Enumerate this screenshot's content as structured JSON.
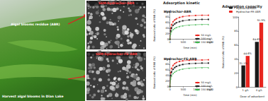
{
  "photo": {
    "label": "Algal blooms residue (ABR)",
    "caption": "Harvest algal blooms in Dian Lake"
  },
  "sem": {
    "top": "SEM-hydrochar-ABR",
    "bottom": "SEM-hydrochar-FE-ABR"
  },
  "kinetic_heading": "Adsorption kinetic",
  "chart_data": [
    {
      "type": "line",
      "title": "Hydrochar-ABR",
      "x_label": "Time (min)",
      "y_label": "Removal ratio of RhB (%)",
      "x": [
        0,
        30,
        60,
        120,
        180,
        240,
        360,
        480,
        720,
        960,
        1200,
        1440
      ],
      "series": [
        {
          "name": "50 mg/L",
          "color": "#e8251f",
          "marker": "circle",
          "line_style": "solid",
          "values": [
            0,
            40,
            52,
            63,
            69,
            73,
            78,
            81,
            84,
            85,
            86,
            86
          ]
        },
        {
          "name": "100 mg/L",
          "color": "#222222",
          "marker": "rect",
          "line_style": "solid",
          "values": [
            0,
            30,
            40,
            50,
            55,
            59,
            63,
            66,
            69,
            70,
            71,
            71
          ]
        },
        {
          "name": "150 mg/L",
          "color": "#3cb44b",
          "marker": "triangle",
          "line_style": "solid",
          "values": [
            0,
            20,
            28,
            35,
            39,
            42,
            46,
            48,
            51,
            52,
            53,
            53
          ]
        }
      ],
      "xlim": [
        0,
        1500
      ],
      "xticks": [
        0,
        500,
        1000,
        1500
      ],
      "ylim": [
        0,
        100
      ],
      "yticks": [
        0,
        20,
        40,
        60,
        80,
        100
      ],
      "grid": false,
      "legend": "lower right"
    },
    {
      "type": "line",
      "title": "Hydrochar-FE-ABR",
      "x_label": "Time (min)",
      "y_label": "Removal ratio of RhB (%)",
      "x": [
        0,
        30,
        60,
        120,
        180,
        240,
        360,
        480,
        720,
        960,
        1200,
        1440
      ],
      "series": [
        {
          "name": "50 mg/L",
          "color": "#e8251f",
          "marker": "circle",
          "line_style": "solid",
          "values": [
            0,
            50,
            65,
            76,
            82,
            86,
            90,
            92,
            94,
            95,
            95,
            96
          ]
        },
        {
          "name": "100 mg/L",
          "color": "#222222",
          "marker": "rect",
          "line_style": "solid",
          "values": [
            0,
            40,
            52,
            62,
            68,
            72,
            76,
            79,
            82,
            83,
            84,
            84
          ]
        },
        {
          "name": "150 mg/L",
          "color": "#3cb44b",
          "marker": "triangle",
          "line_style": "solid",
          "values": [
            0,
            28,
            38,
            47,
            52,
            56,
            60,
            63,
            66,
            67,
            68,
            68
          ]
        }
      ],
      "xlim": [
        0,
        1500
      ],
      "xticks": [
        0,
        500,
        1000,
        1500
      ],
      "ylim": [
        0,
        100
      ],
      "yticks": [
        0,
        20,
        40,
        60,
        80,
        100
      ],
      "grid": false,
      "legend": "lower right"
    },
    {
      "type": "bar",
      "title": "Adsorption capacity",
      "x_label": "Dose of adsorbent",
      "y_label": "Removal ratio of RhB (%)",
      "categories": [
        "1 g/L",
        "4 g/L"
      ],
      "series": [
        {
          "name": "Hydrochar-ABR",
          "color": "#1a1a1a",
          "values": [
            31.1,
            64.6
          ],
          "value_labels": [
            "31.1%",
            "64.6%"
          ]
        },
        {
          "name": "Hydrochar-FE-ABR",
          "color": "#e8251f",
          "values": [
            44.6,
            91.9
          ],
          "value_labels": [
            "44.6%",
            "91.9%"
          ]
        }
      ],
      "ylim": [
        0,
        100
      ],
      "yticks": [
        0,
        20,
        40,
        60,
        80,
        100
      ],
      "data_labels": true,
      "grid": false,
      "legend": "upper left"
    }
  ]
}
